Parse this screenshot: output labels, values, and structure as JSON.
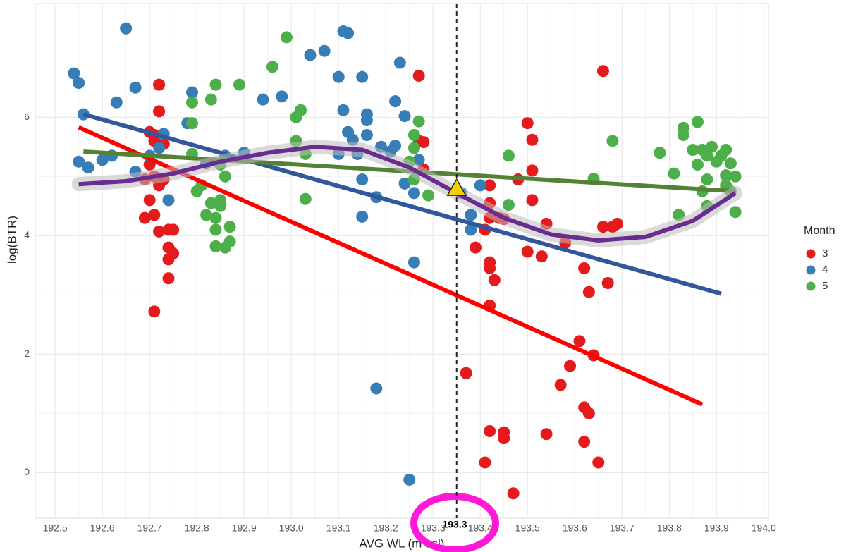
{
  "chart_data": {
    "type": "scatter",
    "x_label": "AVG WL (m asl)",
    "y_label": "log(BTR)",
    "legend_title": "Month",
    "xlim": [
      192.458,
      194.01
    ],
    "ylim": [
      -0.77,
      7.92
    ],
    "xticks": [
      192.5,
      192.6,
      192.7,
      192.8,
      192.9,
      {
        "value": 193.0,
        "label": "193.0"
      },
      193.1,
      193.2,
      193.3,
      193.4,
      193.5,
      193.6,
      193.7,
      193.8,
      193.9,
      {
        "value": 194.0,
        "label": "194.0"
      }
    ],
    "yticks": [
      0,
      2,
      4,
      6
    ],
    "grid": true,
    "legend": "right",
    "series": [
      {
        "name": "3",
        "color": "#e41a1c",
        "x": [
          192.71,
          192.7,
          192.69,
          192.71,
          192.72,
          192.74,
          192.75,
          192.74,
          192.75,
          192.74,
          192.74,
          192.72,
          192.72,
          192.7,
          192.71,
          192.73,
          192.7,
          192.71,
          192.69,
          192.72,
          192.73,
          192.71,
          193.27,
          193.27,
          193.28,
          193.28,
          193.37,
          193.41,
          193.42,
          193.45,
          193.45,
          193.47,
          193.42,
          193.39,
          193.42,
          193.42,
          193.43,
          193.41,
          193.42,
          193.44,
          193.45,
          193.42,
          193.42,
          193.48,
          193.5,
          193.51,
          193.51,
          193.51,
          193.5,
          193.53,
          193.54,
          193.54,
          193.57,
          193.59,
          193.61,
          193.62,
          193.63,
          193.62,
          193.65,
          193.64,
          193.63,
          193.62,
          193.66,
          193.66,
          193.67,
          193.68,
          193.69,
          193.58
        ],
        "values": [
          2.72,
          4.6,
          4.3,
          4.35,
          4.07,
          4.1,
          4.1,
          3.8,
          3.7,
          3.6,
          3.28,
          6.55,
          6.1,
          5.75,
          5.6,
          5.55,
          5.2,
          5.0,
          4.95,
          4.85,
          4.95,
          5.7,
          6.7,
          5.6,
          5.58,
          5.12,
          1.68,
          0.17,
          0.7,
          0.68,
          0.58,
          -0.35,
          2.82,
          3.8,
          3.55,
          3.45,
          3.25,
          4.1,
          4.3,
          4.3,
          4.28,
          4.55,
          4.85,
          4.95,
          5.9,
          5.62,
          5.1,
          4.6,
          3.73,
          3.65,
          4.2,
          0.65,
          1.48,
          1.8,
          2.22,
          1.1,
          1.0,
          0.52,
          0.17,
          1.98,
          3.05,
          3.45,
          6.78,
          4.15,
          3.2,
          4.15,
          4.2,
          3.88
        ]
      },
      {
        "name": "4",
        "color": "#377eb8",
        "x": [
          192.54,
          192.55,
          192.56,
          192.55,
          192.57,
          192.6,
          192.62,
          192.63,
          192.65,
          192.67,
          192.67,
          192.7,
          192.72,
          192.73,
          192.74,
          192.78,
          192.79,
          192.82,
          192.86,
          192.9,
          192.94,
          192.98,
          193.04,
          193.07,
          193.1,
          193.11,
          193.12,
          193.11,
          193.12,
          193.13,
          193.14,
          193.1,
          193.15,
          193.16,
          193.16,
          193.16,
          193.15,
          193.15,
          193.18,
          193.18,
          193.19,
          193.21,
          193.22,
          193.23,
          193.22,
          193.24,
          193.24,
          193.26,
          193.26,
          193.25,
          193.38,
          193.36,
          193.4,
          193.38,
          193.27
        ],
        "values": [
          6.74,
          6.58,
          6.05,
          5.25,
          5.15,
          5.28,
          5.35,
          6.25,
          7.5,
          6.5,
          5.08,
          5.35,
          5.48,
          5.72,
          4.6,
          5.9,
          6.42,
          5.22,
          5.35,
          5.4,
          6.3,
          6.35,
          7.05,
          7.12,
          6.68,
          7.45,
          7.42,
          6.12,
          5.75,
          5.62,
          5.38,
          5.38,
          6.68,
          6.05,
          5.95,
          5.7,
          4.95,
          4.32,
          4.65,
          1.42,
          5.5,
          5.42,
          5.52,
          6.92,
          6.27,
          6.02,
          4.88,
          4.72,
          3.55,
          -0.12,
          4.35,
          4.72,
          4.85,
          4.1,
          5.28
        ]
      },
      {
        "name": "5",
        "color": "#4daf4a",
        "x": [
          192.79,
          192.79,
          192.79,
          192.8,
          192.81,
          192.82,
          192.84,
          192.83,
          192.84,
          192.85,
          192.84,
          192.86,
          192.87,
          192.87,
          192.85,
          192.86,
          192.85,
          192.84,
          192.83,
          192.89,
          192.96,
          192.99,
          193.01,
          193.01,
          193.02,
          193.03,
          193.03,
          193.25,
          193.26,
          193.26,
          193.27,
          193.26,
          193.29,
          193.46,
          193.46,
          193.68,
          193.64,
          193.78,
          193.81,
          193.83,
          193.83,
          193.86,
          193.85,
          193.87,
          193.88,
          193.89,
          193.86,
          193.88,
          193.9,
          193.87,
          193.91,
          193.92,
          193.92,
          193.93,
          193.92,
          193.94,
          193.94,
          193.88,
          193.82,
          193.93
        ],
        "values": [
          6.25,
          5.9,
          5.38,
          4.75,
          4.85,
          4.35,
          4.3,
          4.55,
          4.1,
          4.6,
          3.82,
          3.8,
          3.9,
          4.15,
          4.5,
          5.0,
          5.2,
          6.55,
          6.3,
          6.55,
          6.85,
          7.35,
          5.6,
          6.0,
          6.12,
          5.38,
          4.62,
          5.25,
          5.48,
          5.7,
          5.93,
          4.95,
          4.68,
          5.35,
          4.52,
          5.6,
          4.96,
          5.4,
          5.05,
          5.82,
          5.7,
          5.92,
          5.45,
          5.45,
          5.35,
          5.5,
          5.2,
          4.95,
          5.25,
          4.75,
          5.35,
          5.02,
          5.45,
          5.22,
          4.85,
          5.0,
          4.4,
          4.5,
          4.35,
          4.75
        ]
      }
    ],
    "fits": [
      {
        "color": "#ff0000",
        "x": [
          192.55,
          193.87
        ],
        "values": [
          5.83,
          1.15
        ]
      },
      {
        "color": "#33569c",
        "x": [
          192.56,
          193.91
        ],
        "values": [
          6.05,
          3.02
        ]
      },
      {
        "color": "#548235",
        "x": [
          192.56,
          193.94
        ],
        "values": [
          5.42,
          4.75
        ]
      },
      {
        "color": "#6a2c91",
        "x": [
          192.55,
          192.65,
          192.75,
          192.85,
          192.95,
          193.05,
          193.15,
          193.25,
          193.35,
          193.45,
          193.55,
          193.65,
          193.75,
          193.85,
          193.94
        ],
        "values": [
          4.87,
          4.92,
          5.05,
          5.25,
          5.4,
          5.5,
          5.45,
          5.15,
          4.72,
          4.3,
          4.02,
          3.92,
          3.98,
          4.25,
          4.72
        ]
      }
    ],
    "vline": 193.35,
    "marker": {
      "x": 193.35,
      "y": 4.8,
      "color": "#f5d000"
    },
    "annotation": "193.3"
  }
}
